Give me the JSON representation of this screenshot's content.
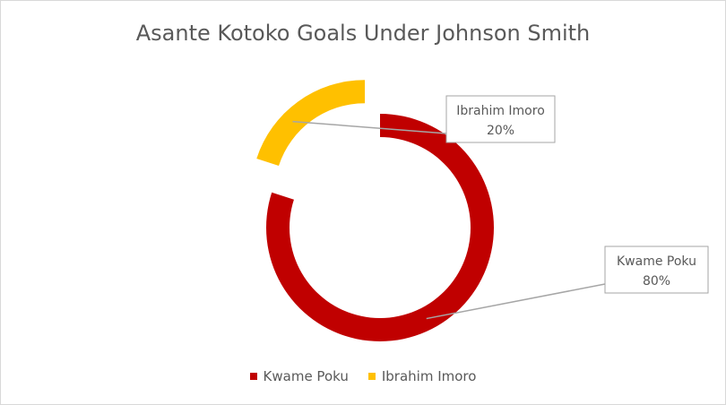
{
  "chart_data": {
    "type": "pie",
    "variant": "doughnut",
    "title": "Asante Kotoko Goals Under Johnson Smith",
    "categories": [
      "Kwame Poku",
      "Ibrahim Imoro"
    ],
    "values": [
      80,
      20
    ],
    "value_labels": [
      "80%",
      "20%"
    ],
    "colors": [
      "#c00000",
      "#ffc000"
    ],
    "exploded_slice": "Ibrahim Imoro",
    "legend_position": "bottom"
  }
}
